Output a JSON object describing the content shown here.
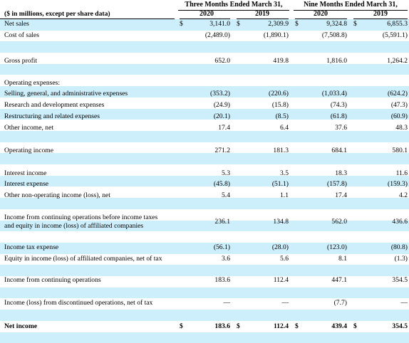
{
  "header": {
    "caption": "($ in millions, except per share data)",
    "groups": [
      "Three Months Ended March 31,",
      "Nine Months Ended March 31,"
    ],
    "years": [
      "2020",
      "2019",
      "2020",
      "2019"
    ]
  },
  "rows": [
    {
      "label": "Net sales",
      "currency": "$",
      "values": [
        "3,141.0",
        "2,309.9",
        "9,324.8",
        "6,855.3"
      ]
    },
    {
      "label": "Cost of sales",
      "values": [
        "(2,489.0)",
        "(1,890.1)",
        "(7,508.8)",
        "(5,591.1)"
      ]
    },
    {
      "label": "Gross profit",
      "values": [
        "652.0",
        "419.8",
        "1,816.0",
        "1,264.2"
      ]
    },
    {
      "label": "Operating expenses:"
    },
    {
      "label": "Selling, general, and administrative expenses",
      "values": [
        "(353.2)",
        "(220.6)",
        "(1,033.4)",
        "(624.2)"
      ]
    },
    {
      "label": "Research and development expenses",
      "values": [
        "(24.9)",
        "(15.8)",
        "(74.3)",
        "(47.3)"
      ]
    },
    {
      "label": "Restructuring and related expenses",
      "values": [
        "(20.1)",
        "(8.5)",
        "(61.8)",
        "(60.9)"
      ]
    },
    {
      "label": "Other income, net",
      "values": [
        "17.4",
        "6.4",
        "37.6",
        "48.3"
      ]
    },
    {
      "label": "Operating income",
      "values": [
        "271.2",
        "181.3",
        "684.1",
        "580.1"
      ]
    },
    {
      "label": "Interest income",
      "values": [
        "5.3",
        "3.5",
        "18.3",
        "11.6"
      ]
    },
    {
      "label": "Interest expense",
      "values": [
        "(45.8)",
        "(51.1)",
        "(157.8)",
        "(159.3)"
      ]
    },
    {
      "label": "Other non-operating income (loss), net",
      "values": [
        "5.4",
        "1.1",
        "17.4",
        "4.2"
      ]
    },
    {
      "label": "Income from continuing operations before income taxes\nand equity in income (loss) of affiliated companies",
      "values": [
        "236.1",
        "134.8",
        "562.0",
        "436.6"
      ]
    },
    {
      "label": "Income tax expense",
      "values": [
        "(56.1)",
        "(28.0)",
        "(123.0)",
        "(80.8)"
      ]
    },
    {
      "label": "Equity in income (loss) of affiliated companies, net of tax",
      "values": [
        "3.6",
        "5.6",
        "8.1",
        "(1.3)"
      ]
    },
    {
      "label": "Income from continuing operations",
      "values": [
        "183.6",
        "112.4",
        "447.1",
        "354.5"
      ]
    },
    {
      "label": "Income (loss) from discontinued operations, net of tax",
      "values": [
        "—",
        "—",
        "(7.7)",
        "—"
      ]
    },
    {
      "label": "Net income",
      "currency": "$",
      "bold": true,
      "values": [
        "183.6",
        "112.4",
        "439.4",
        "354.5"
      ]
    }
  ]
}
